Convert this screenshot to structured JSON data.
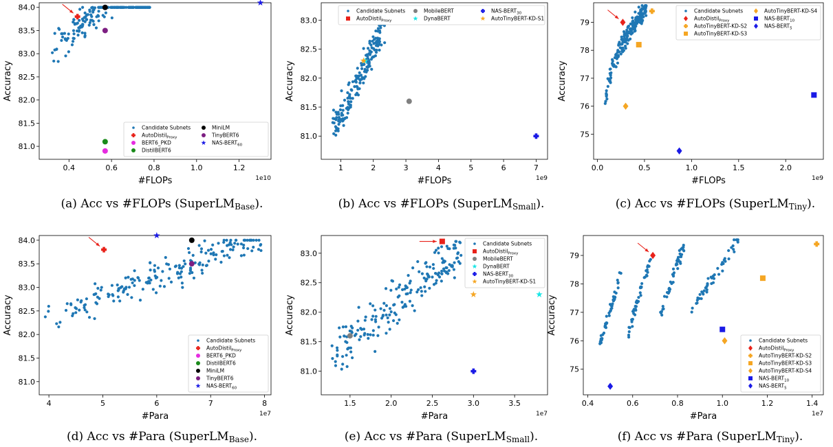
{
  "palette": {
    "candidate": "#1f77b4",
    "arrow": "#e8221a"
  },
  "charts": [
    {
      "id": "a",
      "type": "scatter",
      "caption": {
        "prefix": "(a)  Acc vs #FLOPs (SuperLM",
        "sub": "Base",
        "suffix": ")."
      },
      "xlabel": "#FLOPs",
      "ylabel": "Accuracy",
      "exponent": "1e10",
      "xlim": [
        0.26,
        1.35
      ],
      "ylim": [
        80.72,
        84.1
      ],
      "xticks": [
        0.4,
        0.6,
        0.8,
        1.0,
        1.2
      ],
      "xtick_labels": [
        "0.4",
        "0.6",
        "0.8",
        "1.0",
        "1.2"
      ],
      "yticks": [
        81.0,
        81.5,
        82.0,
        82.5,
        83.0,
        83.5,
        84.0
      ],
      "ytick_labels": [
        "81.0",
        "81.5",
        "82.0",
        "82.5",
        "83.0",
        "83.5",
        "84.0"
      ],
      "candidates": {
        "n": 200,
        "x_range": [
          0.3,
          0.78
        ],
        "y_base": 81.9,
        "y_slope": 3.8,
        "y_spread": 0.75,
        "seed": 11
      },
      "legend": {
        "position": "lower-right",
        "columns": 2
      },
      "models": [
        {
          "name": "AutoDistil",
          "sub": "Proxy",
          "x": 0.44,
          "y": 83.8,
          "color": "#e8221a",
          "marker": "plus",
          "arrow": true
        },
        {
          "name": "BERT6_PKD",
          "x": 0.57,
          "y": 80.9,
          "color": "#e62ce0",
          "marker": "circle"
        },
        {
          "name": "DistilBERT6",
          "x": 0.57,
          "y": 81.1,
          "color": "#1a8a1a",
          "marker": "circle"
        },
        {
          "name": "MiniLM",
          "x": 0.57,
          "y": 84.0,
          "color": "#000000",
          "marker": "circle"
        },
        {
          "name": "TinyBERT6",
          "x": 0.57,
          "y": 83.5,
          "color": "#7d1f82",
          "marker": "circle"
        },
        {
          "name": "NAS-BERT",
          "sub": "60",
          "x": 1.3,
          "y": 84.1,
          "color": "#1a1ae6",
          "marker": "star"
        }
      ]
    },
    {
      "id": "b",
      "type": "scatter",
      "caption": {
        "prefix": "(b)  Acc vs #FLOPs (SuperLM",
        "sub": "Small",
        "suffix": ")."
      },
      "xlabel": "#FLOPs",
      "ylabel": "Accuracy",
      "exponent": "1e9",
      "xlim": [
        0.4,
        7.35
      ],
      "ylim": [
        80.6,
        83.3
      ],
      "xticks": [
        1,
        2,
        3,
        4,
        5,
        6,
        7
      ],
      "xtick_labels": [
        "1",
        "2",
        "3",
        "4",
        "5",
        "6",
        "7"
      ],
      "yticks": [
        81.0,
        81.5,
        82.0,
        82.5,
        83.0
      ],
      "ytick_labels": [
        "81.0",
        "81.5",
        "82.0",
        "82.5",
        "83.0"
      ],
      "candidates": {
        "n": 200,
        "x_range": [
          0.75,
          2.35
        ],
        "y_base": 80.2,
        "y_slope": 1.15,
        "y_spread": 0.6,
        "seed": 23
      },
      "legend": {
        "position": "top-right",
        "columns": 3
      },
      "models": [
        {
          "name": "AutoDistil",
          "sub": "Proxy",
          "x": 2.0,
          "y": 83.2,
          "color": "#e8221a",
          "marker": "square",
          "arrow": true
        },
        {
          "name": "MobileBERT",
          "x": 3.1,
          "y": 81.6,
          "color": "#808080",
          "marker": "circle"
        },
        {
          "name": "DynaBERT",
          "x": 1.75,
          "y": 82.3,
          "color": "#19e6e6",
          "marker": "star"
        },
        {
          "name": "NAS-BERT",
          "sub": "30",
          "x": 7.0,
          "y": 81.0,
          "color": "#1a1ae6",
          "marker": "plus"
        },
        {
          "name": "AutoTinyBERT-KD-S1",
          "x": 1.7,
          "y": 82.3,
          "color": "#f5a623",
          "marker": "star"
        }
      ]
    },
    {
      "id": "c",
      "type": "scatter",
      "caption": {
        "prefix": "(c)  Acc vs #FLOPs (SuperLM",
        "sub": "Tiny",
        "suffix": ")."
      },
      "xlabel": "#FLOPs",
      "ylabel": "Accuracy",
      "exponent": "1e9",
      "xlim": [
        -0.04,
        2.4
      ],
      "ylim": [
        74.1,
        79.7
      ],
      "xticks": [
        0.0,
        0.5,
        1.0,
        1.5,
        2.0
      ],
      "xtick_labels": [
        "0.0",
        "0.5",
        "1.0",
        "1.5",
        "2.0"
      ],
      "yticks": [
        75,
        76,
        77,
        78,
        79
      ],
      "ytick_labels": [
        "75",
        "76",
        "77",
        "78",
        "79"
      ],
      "candidates": {
        "n": 200,
        "x_range": [
          0.08,
          0.52
        ],
        "y_base": 75.8,
        "y_slope": 0,
        "y_spread": 0.55,
        "curve": "sqrt",
        "y_max": 79.5,
        "seed": 37
      },
      "legend": {
        "position": "top-right",
        "columns": 2
      },
      "models": [
        {
          "name": "AutoDistil",
          "sub": "Proxy",
          "x": 0.27,
          "y": 79.0,
          "color": "#e8221a",
          "marker": "diamond",
          "arrow": true
        },
        {
          "name": "AutoTinyBERT-KD-S2",
          "x": 0.58,
          "y": 79.4,
          "color": "#f5a623",
          "marker": "plus"
        },
        {
          "name": "AutoTinyBERT-KD-S3",
          "x": 0.44,
          "y": 78.2,
          "color": "#f5a623",
          "marker": "square"
        },
        {
          "name": "AutoTinyBERT-KD-S4",
          "x": 0.3,
          "y": 76.0,
          "color": "#f5a623",
          "marker": "diamond"
        },
        {
          "name": "NAS-BERT",
          "sub": "10",
          "x": 2.3,
          "y": 76.4,
          "color": "#1a1ae6",
          "marker": "square"
        },
        {
          "name": "NAS-BERT",
          "sub": "5",
          "x": 0.87,
          "y": 74.4,
          "color": "#1a1ae6",
          "marker": "diamond"
        }
      ]
    },
    {
      "id": "d",
      "type": "scatter",
      "caption": {
        "prefix": "(d)  Acc vs #Para (SuperLM",
        "sub": "Base",
        "suffix": ")."
      },
      "xlabel": "#Para",
      "ylabel": "Accuracy",
      "exponent": "1e7",
      "xlim": [
        3.82,
        8.12
      ],
      "ylim": [
        80.72,
        84.1
      ],
      "xticks": [
        4,
        5,
        6,
        7,
        8
      ],
      "xtick_labels": [
        "4",
        "5",
        "6",
        "7",
        "8"
      ],
      "yticks": [
        81.0,
        81.5,
        82.0,
        82.5,
        83.0,
        83.5,
        84.0
      ],
      "ytick_labels": [
        "81.0",
        "81.5",
        "82.0",
        "82.5",
        "83.0",
        "83.5",
        "84.0"
      ],
      "candidates": {
        "n": 200,
        "x_range": [
          3.9,
          7.95
        ],
        "y_base": 80.65,
        "y_slope": 0.43,
        "y_spread": 0.7,
        "seed": 51
      },
      "legend": {
        "position": "lower-right",
        "columns": 1
      },
      "models": [
        {
          "name": "AutoDistil",
          "sub": "Proxy",
          "x": 5.02,
          "y": 83.8,
          "color": "#e8221a",
          "marker": "plus",
          "arrow": true
        },
        {
          "name": "BERT6_PKD",
          "x": 6.65,
          "y": 80.9,
          "color": "#e62ce0",
          "marker": "circle"
        },
        {
          "name": "DistilBERT6",
          "x": 6.65,
          "y": 81.1,
          "color": "#1a8a1a",
          "marker": "circle"
        },
        {
          "name": "MiniLM",
          "x": 6.65,
          "y": 84.0,
          "color": "#000000",
          "marker": "circle"
        },
        {
          "name": "TinyBERT6",
          "x": 6.65,
          "y": 83.5,
          "color": "#7d1f82",
          "marker": "circle"
        },
        {
          "name": "NAS-BERT",
          "sub": "60",
          "x": 6.0,
          "y": 84.1,
          "color": "#1a1ae6",
          "marker": "star"
        }
      ]
    },
    {
      "id": "e",
      "type": "scatter",
      "caption": {
        "prefix": "(e)  Acc vs #Para (SuperLM",
        "sub": "Small",
        "suffix": ")."
      },
      "xlabel": "#Para",
      "ylabel": "Accuracy",
      "exponent": "1e7",
      "xlim": [
        1.15,
        3.9
      ],
      "ylim": [
        80.6,
        83.3
      ],
      "xticks": [
        1.5,
        2.0,
        2.5,
        3.0,
        3.5
      ],
      "xtick_labels": [
        "1.5",
        "2.0",
        "2.5",
        "3.0",
        "3.5"
      ],
      "yticks": [
        81.0,
        81.5,
        82.0,
        82.5,
        83.0
      ],
      "ytick_labels": [
        "81.0",
        "81.5",
        "82.0",
        "82.5",
        "83.0"
      ],
      "candidates": {
        "n": 200,
        "x_range": [
          1.28,
          2.85
        ],
        "y_base": 79.8,
        "y_slope": 1.15,
        "y_spread": 0.75,
        "seed": 67
      },
      "legend": {
        "position": "top-right",
        "columns": 1
      },
      "models": [
        {
          "name": "AutoDistil",
          "sub": "Proxy",
          "x": 2.62,
          "y": 83.2,
          "color": "#e8221a",
          "marker": "square",
          "arrow": true
        },
        {
          "name": "MobileBERT",
          "x": 1.5,
          "y": 81.6,
          "color": "#808080",
          "marker": "circle"
        },
        {
          "name": "DynaBERT",
          "x": 3.8,
          "y": 82.3,
          "color": "#19e6e6",
          "marker": "star"
        },
        {
          "name": "NAS-BERT",
          "sub": "30",
          "x": 3.0,
          "y": 81.0,
          "color": "#1a1ae6",
          "marker": "plus"
        },
        {
          "name": "AutoTinyBERT-KD-S1",
          "x": 3.0,
          "y": 82.3,
          "color": "#f5a623",
          "marker": "star"
        }
      ]
    },
    {
      "id": "f",
      "type": "scatter",
      "caption": {
        "prefix": "(f)  Acc vs #Para (SuperLM",
        "sub": "Tiny",
        "suffix": ")."
      },
      "xlabel": "#Para",
      "ylabel": "Accuracy",
      "exponent": "1e7",
      "xlim": [
        0.38,
        1.45
      ],
      "ylim": [
        74.1,
        79.7
      ],
      "xticks": [
        0.4,
        0.6,
        0.8,
        1.0,
        1.2,
        1.4
      ],
      "xtick_labels": [
        "0.4",
        "0.6",
        "0.8",
        "1.0",
        "1.2",
        "1.4"
      ],
      "yticks": [
        75,
        76,
        77,
        78,
        79
      ],
      "ytick_labels": [
        "75",
        "76",
        "77",
        "78",
        "79"
      ],
      "candidates": {
        "n": 200,
        "clusters": [
          [
            0.45,
            0.55,
            75.8
          ],
          [
            0.58,
            0.68,
            76.3
          ],
          [
            0.72,
            0.83,
            76.8
          ],
          [
            0.86,
            1.07,
            77.0
          ]
        ],
        "y_rise": 2.6,
        "y_spread": 0.45,
        "seed": 79
      },
      "legend": {
        "position": "lower-right",
        "columns": 1
      },
      "models": [
        {
          "name": "AutoDistil",
          "sub": "Proxy",
          "x": 0.69,
          "y": 79.0,
          "color": "#e8221a",
          "marker": "diamond",
          "arrow": true
        },
        {
          "name": "AutoTinyBERT-KD-S2",
          "x": 1.42,
          "y": 79.4,
          "color": "#f5a623",
          "marker": "plus"
        },
        {
          "name": "AutoTinyBERT-KD-S3",
          "x": 1.18,
          "y": 78.2,
          "color": "#f5a623",
          "marker": "square"
        },
        {
          "name": "AutoTinyBERT-KD-S4",
          "x": 1.01,
          "y": 76.0,
          "color": "#f5a623",
          "marker": "diamond"
        },
        {
          "name": "NAS-BERT",
          "sub": "10",
          "x": 1.0,
          "y": 76.4,
          "color": "#1a1ae6",
          "marker": "square"
        },
        {
          "name": "NAS-BERT",
          "sub": "5",
          "x": 0.5,
          "y": 74.4,
          "color": "#1a1ae6",
          "marker": "diamond"
        }
      ]
    }
  ],
  "legend_candidate_label": "Candidate Subnets"
}
